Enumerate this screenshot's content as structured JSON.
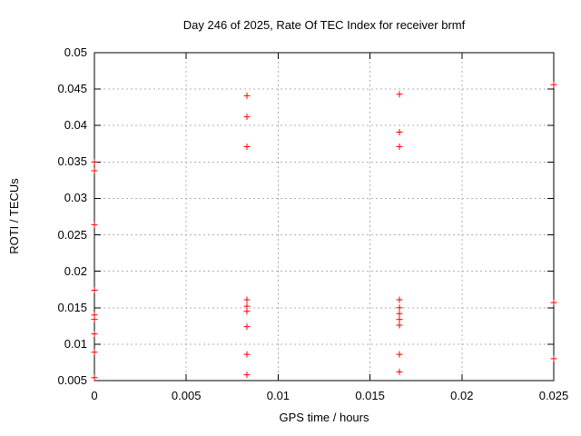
{
  "page": {
    "background": "#ffffff"
  },
  "chart_data": {
    "type": "scatter",
    "title": "Day 246 of 2025, Rate Of TEC Index for receiver brmf",
    "xlabel": "GPS time / hours",
    "ylabel": "ROTI / TECUs",
    "xlim": [
      0,
      0.025
    ],
    "ylim": [
      0.005,
      0.05
    ],
    "xticks": [
      0,
      0.005,
      0.01,
      0.015,
      0.02,
      0.025
    ],
    "xtick_labels": [
      "0",
      "0.005",
      "0.01",
      "0.015",
      "0.02",
      "0.025"
    ],
    "yticks": [
      0.005,
      0.01,
      0.015,
      0.02,
      0.025,
      0.03,
      0.035,
      0.04,
      0.045,
      0.05
    ],
    "ytick_labels": [
      "0.005",
      "0.01",
      "0.015",
      "0.02",
      "0.025",
      "0.03",
      "0.035",
      "0.04",
      "0.045",
      "0.05"
    ],
    "grid": true,
    "legend": "none",
    "marker": "plus",
    "marker_color": "#ff0000",
    "grid_color": "#b0b0b0",
    "axis_color": "#000000",
    "series": [
      {
        "name": "ROTI",
        "points": [
          [
            0,
            0.035
          ],
          [
            0,
            0.0338
          ],
          [
            0,
            0.0264
          ],
          [
            0,
            0.0174
          ],
          [
            0,
            0.014
          ],
          [
            0,
            0.0134
          ],
          [
            0,
            0.0114
          ],
          [
            0,
            0.0089
          ],
          [
            0,
            0.0054
          ],
          [
            0.0083,
            0.0441
          ],
          [
            0.0083,
            0.0412
          ],
          [
            0.0083,
            0.0371
          ],
          [
            0.0083,
            0.0161
          ],
          [
            0.0083,
            0.0152
          ],
          [
            0.0083,
            0.0145
          ],
          [
            0.0083,
            0.0124
          ],
          [
            0.0083,
            0.0086
          ],
          [
            0.0083,
            0.0058
          ],
          [
            0.0166,
            0.0443
          ],
          [
            0.0166,
            0.0391
          ],
          [
            0.0166,
            0.0371
          ],
          [
            0.0166,
            0.0161
          ],
          [
            0.0166,
            0.015
          ],
          [
            0.0166,
            0.0142
          ],
          [
            0.0166,
            0.0134
          ],
          [
            0.0166,
            0.0126
          ],
          [
            0.0166,
            0.0086
          ],
          [
            0.0166,
            0.0062
          ],
          [
            0.025,
            0.0456
          ],
          [
            0.025,
            0.0157
          ],
          [
            0.025,
            0.008
          ]
        ]
      }
    ]
  }
}
